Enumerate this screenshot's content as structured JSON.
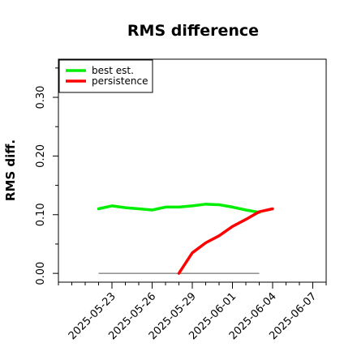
{
  "chart_data": {
    "type": "line",
    "title": "RMS difference",
    "xlabel": "",
    "ylabel": "RMS diff.",
    "xlim": [
      "2025-05-19",
      "2025-06-08"
    ],
    "ylim": [
      -0.015,
      0.365
    ],
    "y_ticks": [
      "0.00",
      "0.10",
      "0.20",
      "0.30"
    ],
    "y_tick_values": [
      0.0,
      0.1,
      0.2,
      0.3
    ],
    "y_minor_step": 0.05,
    "x_ticks": [
      "2025-05-23",
      "2025-05-26",
      "2025-05-29",
      "2025-06-01",
      "2025-06-04",
      "2025-06-07"
    ],
    "x_minor_step_days": 1,
    "x_tick_label_rotation": -45,
    "grid": false,
    "legend": {
      "position": "top-left",
      "boxed": true
    },
    "reference_line": {
      "y": 0.0,
      "x_start": "2025-05-22",
      "x_end": "2025-06-03",
      "color": "#555555"
    },
    "series": [
      {
        "name": "best est.",
        "color": "#00ee00",
        "x": [
          "2025-05-22",
          "2025-05-23",
          "2025-05-24",
          "2025-05-25",
          "2025-05-26",
          "2025-05-27",
          "2025-05-28",
          "2025-05-29",
          "2025-05-30",
          "2025-05-31",
          "2025-06-01",
          "2025-06-02",
          "2025-06-03"
        ],
        "values": [
          0.11,
          0.115,
          0.112,
          0.11,
          0.108,
          0.113,
          0.113,
          0.115,
          0.118,
          0.117,
          0.113,
          0.108,
          0.104
        ]
      },
      {
        "name": "persistence",
        "color": "#ff0000",
        "x": [
          "2025-05-28",
          "2025-05-29",
          "2025-05-30",
          "2025-05-31",
          "2025-06-01",
          "2025-06-02",
          "2025-06-03",
          "2025-06-04"
        ],
        "values": [
          0.0,
          0.035,
          0.052,
          0.064,
          0.08,
          0.092,
          0.105,
          0.11
        ]
      }
    ]
  }
}
